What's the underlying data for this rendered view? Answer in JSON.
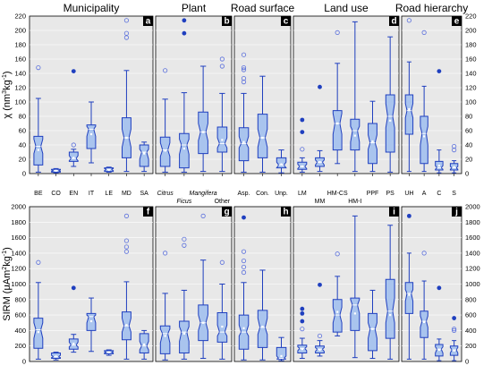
{
  "chart_data": {
    "type": "box",
    "colors": {
      "panel_bg": "#e8e8e8",
      "box_fill": "#a9c4ee",
      "box_edge": "#1f3fbf",
      "whisker": "#1f3fbf",
      "median": "#ffffff",
      "outlier": "#5a6fdc",
      "letter_bg": "#000000",
      "letter_text": "#ffffff"
    },
    "groups": [
      {
        "id": "municipality",
        "label": "Municipality",
        "top_panel": "a",
        "bottom_panel": "f",
        "categories": [
          {
            "label": "BE",
            "row": "top"
          },
          {
            "label": "CO",
            "row": "top"
          },
          {
            "label": "EN",
            "row": "top"
          },
          {
            "label": "IT",
            "row": "top"
          },
          {
            "label": "LE",
            "row": "top"
          },
          {
            "label": "MD",
            "row": "top"
          },
          {
            "label": "SA",
            "row": "top"
          }
        ]
      },
      {
        "id": "plant",
        "label": "Plant",
        "top_panel": "b",
        "bottom_panel": "g",
        "categories": [
          {
            "label": "Citrus",
            "row": "top",
            "italic": true
          },
          {
            "label": "Ficus",
            "row": "bottom",
            "italic": true
          },
          {
            "label": "Mangifera",
            "row": "top",
            "italic": true
          },
          {
            "label": "Other",
            "row": "bottom"
          }
        ]
      },
      {
        "id": "road_surface",
        "label": "Road surface",
        "top_panel": "c",
        "bottom_panel": "h",
        "categories": [
          {
            "label": "Asp.",
            "row": "top"
          },
          {
            "label": "Con.",
            "row": "top"
          },
          {
            "label": "Unp.",
            "row": "top"
          }
        ]
      },
      {
        "id": "land_use",
        "label": "Land use",
        "top_panel": "d",
        "bottom_panel": "i",
        "categories": [
          {
            "label": "LM",
            "row": "top"
          },
          {
            "label": "MM",
            "row": "bottom"
          },
          {
            "label": "HM-CS",
            "row": "top"
          },
          {
            "label": "HM-I",
            "row": "bottom"
          },
          {
            "label": "PPF",
            "row": "top"
          },
          {
            "label": "PS",
            "row": "top"
          }
        ]
      },
      {
        "id": "road_hierarchy",
        "label": "Road hierarchy",
        "top_panel": "e",
        "bottom_panel": "j",
        "categories": [
          {
            "label": "UH",
            "row": "top"
          },
          {
            "label": "A",
            "row": "top"
          },
          {
            "label": "C",
            "row": "top"
          },
          {
            "label": "S",
            "row": "top"
          }
        ]
      }
    ],
    "top": {
      "ylabel_main": "χ (nm",
      "ylabel_sup1": "3",
      "ylabel_mid": "kg",
      "ylabel_sup2": "-1",
      "ylabel_end": ")",
      "ylim": [
        0,
        220
      ],
      "ticks": [
        "0",
        "20",
        "40",
        "60",
        "80",
        "100",
        "120",
        "140",
        "160",
        "180",
        "200",
        "220"
      ],
      "boxes": [
        [
          {
            "min": 2,
            "q1": 12,
            "med": 38,
            "q3": 52,
            "max": 105,
            "mean": 33,
            "nl": 28,
            "nh": 48,
            "out": [
              148
            ],
            "fill": []
          },
          {
            "min": 1,
            "q1": 2,
            "med": 4,
            "q3": 6,
            "max": 7,
            "mean": 4,
            "nl": 3,
            "nh": 5,
            "out": [],
            "fill": []
          },
          {
            "min": 10,
            "q1": 17,
            "med": 21,
            "q3": 30,
            "max": 34,
            "mean": 22,
            "nl": 18,
            "nh": 25,
            "out": [
              40
            ],
            "fill": [
              143
            ]
          },
          {
            "min": 15,
            "q1": 35,
            "med": 62,
            "q3": 68,
            "max": 100,
            "mean": 55,
            "nl": 52,
            "nh": 66,
            "out": [],
            "fill": []
          },
          {
            "min": 2,
            "q1": 3,
            "med": 6,
            "q3": 8,
            "max": 9,
            "mean": 5,
            "nl": 4,
            "nh": 7,
            "out": [],
            "fill": []
          },
          {
            "min": 3,
            "q1": 22,
            "med": 50,
            "q3": 78,
            "max": 144,
            "mean": 50,
            "nl": 37,
            "nh": 62,
            "out": [
              190,
              196,
              214
            ],
            "fill": []
          },
          {
            "min": 3,
            "q1": 10,
            "med": 30,
            "q3": 40,
            "max": 44,
            "mean": 28,
            "nl": 20,
            "nh": 34,
            "out": [],
            "fill": []
          }
        ],
        [
          {
            "min": 2,
            "q1": 10,
            "med": 33,
            "q3": 51,
            "max": 104,
            "mean": 32,
            "nl": 24,
            "nh": 43,
            "out": [
              144
            ],
            "fill": []
          },
          {
            "min": 2,
            "q1": 8,
            "med": 40,
            "q3": 56,
            "max": 113,
            "mean": 35,
            "nl": 27,
            "nh": 48,
            "out": [],
            "fill": [
              196,
              214
            ]
          },
          {
            "min": 3,
            "q1": 28,
            "med": 58,
            "q3": 86,
            "max": 150,
            "mean": 58,
            "nl": 46,
            "nh": 70,
            "out": [],
            "fill": []
          },
          {
            "min": 3,
            "q1": 30,
            "med": 42,
            "q3": 65,
            "max": 112,
            "mean": 47,
            "nl": 36,
            "nh": 50,
            "out": [
              150,
              160
            ],
            "fill": []
          }
        ],
        [
          {
            "min": 2,
            "q1": 18,
            "med": 42,
            "q3": 64,
            "max": 112,
            "mean": 44,
            "nl": 36,
            "nh": 52,
            "out": [
              128,
              133,
              145,
              148,
              166
            ],
            "fill": []
          },
          {
            "min": 2,
            "q1": 22,
            "med": 50,
            "q3": 83,
            "max": 136,
            "mean": 50,
            "nl": 37,
            "nh": 62,
            "out": [],
            "fill": []
          },
          {
            "min": 1,
            "q1": 8,
            "med": 12,
            "q3": 22,
            "max": 33,
            "mean": 13,
            "nl": 8,
            "nh": 16,
            "out": [],
            "fill": []
          }
        ],
        [
          {
            "min": 2,
            "q1": 6,
            "med": 10,
            "q3": 16,
            "max": 22,
            "mean": 10,
            "nl": 7,
            "nh": 13,
            "out": [
              34
            ],
            "fill": [
              58,
              75
            ]
          },
          {
            "min": 3,
            "q1": 10,
            "med": 16,
            "q3": 22,
            "max": 32,
            "mean": 16,
            "nl": 12,
            "nh": 19,
            "out": [],
            "fill": [
              121
            ]
          },
          {
            "min": 14,
            "q1": 33,
            "med": 70,
            "q3": 88,
            "max": 154,
            "mean": 70,
            "nl": 55,
            "nh": 84,
            "out": [
              197
            ],
            "fill": []
          },
          {
            "min": 3,
            "q1": 33,
            "med": 60,
            "q3": 76,
            "max": 212,
            "mean": 53,
            "nl": 44,
            "nh": 66,
            "out": [],
            "fill": []
          },
          {
            "min": 3,
            "q1": 14,
            "med": 43,
            "q3": 70,
            "max": 101,
            "mean": 45,
            "nl": 34,
            "nh": 54,
            "out": [],
            "fill": []
          },
          {
            "min": 2,
            "q1": 30,
            "med": 80,
            "q3": 110,
            "max": 191,
            "mean": 74,
            "nl": 64,
            "nh": 98,
            "out": [],
            "fill": []
          }
        ],
        [
          {
            "min": 3,
            "q1": 55,
            "med": 88,
            "q3": 110,
            "max": 156,
            "mean": 90,
            "nl": 78,
            "nh": 98,
            "out": [
              214
            ],
            "fill": []
          },
          {
            "min": 3,
            "q1": 14,
            "med": 56,
            "q3": 80,
            "max": 122,
            "mean": 52,
            "nl": 40,
            "nh": 66,
            "out": [
              197
            ],
            "fill": []
          },
          {
            "min": 1,
            "q1": 5,
            "med": 8,
            "q3": 17,
            "max": 33,
            "mean": 11,
            "nl": 6,
            "nh": 11,
            "out": [],
            "fill": [
              143
            ]
          },
          {
            "min": 1,
            "q1": 5,
            "med": 8,
            "q3": 14,
            "max": 18,
            "mean": 9,
            "nl": 6,
            "nh": 10,
            "out": [
              33,
              38
            ],
            "fill": []
          }
        ]
      ]
    },
    "bottom": {
      "ylabel_main": "SIRM (μAm",
      "ylabel_sup1": "2",
      "ylabel_mid": "kg",
      "ylabel_sup2": "-1",
      "ylabel_end": ")",
      "ylim": [
        0,
        2000
      ],
      "ticks": [
        "0",
        "200",
        "400",
        "600",
        "800",
        "1000",
        "1200",
        "1400",
        "1600",
        "1800",
        "2000"
      ],
      "boxes": [
        [
          {
            "min": 30,
            "q1": 170,
            "med": 410,
            "q3": 560,
            "max": 1020,
            "mean": 380,
            "nl": 300,
            "nh": 500,
            "out": [
              1280
            ],
            "fill": []
          },
          {
            "min": 20,
            "q1": 40,
            "med": 60,
            "q3": 110,
            "max": 120,
            "mean": 65,
            "nl": 50,
            "nh": 80,
            "out": [],
            "fill": []
          },
          {
            "min": 120,
            "q1": 160,
            "med": 210,
            "q3": 290,
            "max": 350,
            "mean": 230,
            "nl": 190,
            "nh": 250,
            "out": [],
            "fill": [
              950
            ]
          },
          {
            "min": 130,
            "q1": 400,
            "med": 580,
            "q3": 620,
            "max": 820,
            "mean": 520,
            "nl": 500,
            "nh": 600,
            "out": [],
            "fill": []
          },
          {
            "min": 80,
            "q1": 100,
            "med": 120,
            "q3": 140,
            "max": 150,
            "mean": 120,
            "nl": 110,
            "nh": 130,
            "out": [],
            "fill": []
          },
          {
            "min": 30,
            "q1": 280,
            "med": 460,
            "q3": 640,
            "max": 1030,
            "mean": 470,
            "nl": 380,
            "nh": 560,
            "out": [
              1420,
              1480,
              1560,
              1880
            ],
            "fill": []
          },
          {
            "min": 30,
            "q1": 110,
            "med": 200,
            "q3": 360,
            "max": 400,
            "mean": 220,
            "nl": 150,
            "nh": 260,
            "out": [],
            "fill": []
          }
        ],
        [
          {
            "min": 20,
            "q1": 100,
            "med": 360,
            "q3": 460,
            "max": 880,
            "mean": 330,
            "nl": 240,
            "nh": 420,
            "out": [
              1400
            ],
            "fill": []
          },
          {
            "min": 30,
            "q1": 110,
            "med": 380,
            "q3": 520,
            "max": 920,
            "mean": 360,
            "nl": 260,
            "nh": 450,
            "out": [
              1500,
              1580
            ],
            "fill": []
          },
          {
            "min": 40,
            "q1": 270,
            "med": 500,
            "q3": 730,
            "max": 1310,
            "mean": 500,
            "nl": 400,
            "nh": 600,
            "out": [
              1880
            ],
            "fill": []
          },
          {
            "min": 30,
            "q1": 250,
            "med": 380,
            "q3": 630,
            "max": 1000,
            "mean": 450,
            "nl": 330,
            "nh": 470,
            "out": [
              1280
            ],
            "fill": []
          }
        ],
        [
          {
            "min": 20,
            "q1": 160,
            "med": 380,
            "q3": 600,
            "max": 1020,
            "mean": 430,
            "nl": 330,
            "nh": 470,
            "out": [
              1150,
              1220,
              1300,
              1420
            ],
            "fill": [
              1860
            ]
          },
          {
            "min": 20,
            "q1": 180,
            "med": 440,
            "q3": 660,
            "max": 1180,
            "mean": 450,
            "nl": 350,
            "nh": 560,
            "out": [],
            "fill": []
          },
          {
            "min": 10,
            "q1": 30,
            "med": 40,
            "q3": 180,
            "max": 310,
            "mean": 70,
            "nl": 30,
            "nh": 70,
            "out": [],
            "fill": []
          }
        ],
        [
          {
            "min": 40,
            "q1": 110,
            "med": 170,
            "q3": 210,
            "max": 300,
            "mean": 160,
            "nl": 140,
            "nh": 190,
            "out": [
              420
            ],
            "fill": [
              520,
              620,
              680
            ]
          },
          {
            "min": 70,
            "q1": 110,
            "med": 160,
            "q3": 200,
            "max": 270,
            "mean": 150,
            "nl": 130,
            "nh": 180,
            "out": [
              330
            ],
            "fill": [
              990
            ]
          },
          {
            "min": 330,
            "q1": 380,
            "med": 600,
            "q3": 800,
            "max": 1100,
            "mean": 640,
            "nl": 500,
            "nh": 700,
            "out": [
              1390
            ],
            "fill": []
          },
          {
            "min": 50,
            "q1": 400,
            "med": 730,
            "q3": 820,
            "max": 1880,
            "mean": 620,
            "nl": 620,
            "nh": 800,
            "out": [],
            "fill": []
          },
          {
            "min": 40,
            "q1": 140,
            "med": 420,
            "q3": 620,
            "max": 920,
            "mean": 420,
            "nl": 300,
            "nh": 500,
            "out": [],
            "fill": []
          },
          {
            "min": 30,
            "q1": 300,
            "med": 650,
            "q3": 1060,
            "max": 1760,
            "mean": 600,
            "nl": 500,
            "nh": 820,
            "out": [],
            "fill": []
          }
        ],
        [
          {
            "min": 30,
            "q1": 620,
            "med": 880,
            "q3": 1020,
            "max": 1400,
            "mean": 860,
            "nl": 780,
            "nh": 930,
            "out": [],
            "fill": [
              1880
            ]
          },
          {
            "min": 30,
            "q1": 310,
            "med": 520,
            "q3": 650,
            "max": 1040,
            "mean": 510,
            "nl": 440,
            "nh": 590,
            "out": [
              1400
            ],
            "fill": []
          },
          {
            "min": 10,
            "q1": 70,
            "med": 160,
            "q3": 220,
            "max": 290,
            "mean": 150,
            "nl": 110,
            "nh": 190,
            "out": [],
            "fill": [
              950
            ]
          },
          {
            "min": 10,
            "q1": 80,
            "med": 150,
            "q3": 200,
            "max": 270,
            "mean": 140,
            "nl": 110,
            "nh": 180,
            "out": [
              400,
              420
            ],
            "fill": [
              560
            ]
          }
        ]
      ]
    }
  }
}
